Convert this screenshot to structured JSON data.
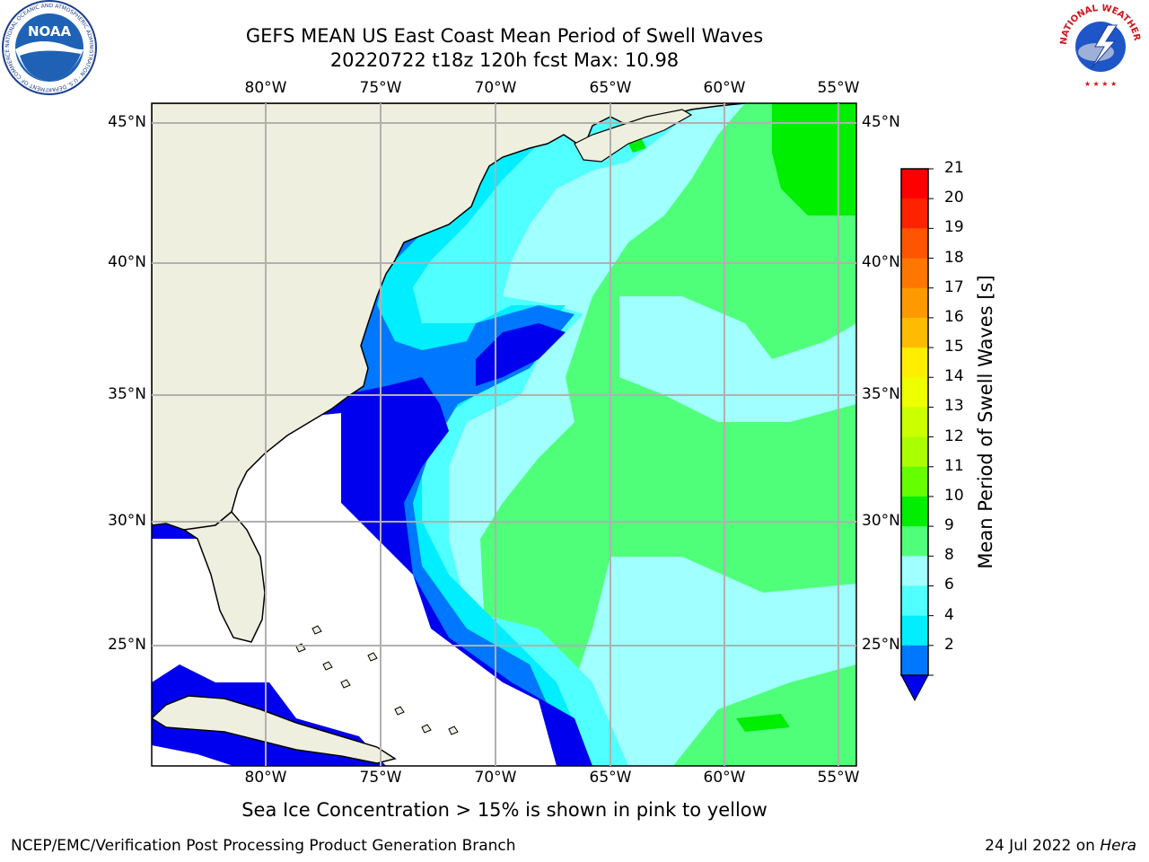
{
  "title": {
    "line1": "GEFS MEAN US East Coast Mean Period of Swell Waves",
    "line2": "20220722 t18z 120h fcst   Max: 10.98"
  },
  "map": {
    "lon_ticks_top": [
      "80°W",
      "75°W",
      "70°W",
      "65°W",
      "60°W",
      "55°W"
    ],
    "lon_ticks_bottom": [
      "80°W",
      "75°W",
      "70°W",
      "65°W",
      "60°W",
      "55°W"
    ],
    "lat_ticks_left": [
      "45°N",
      "40°N",
      "35°N",
      "30°N",
      "25°N"
    ],
    "lat_ticks_right": [
      "45°N",
      "40°N",
      "35°N",
      "30°N",
      "25°N"
    ],
    "colors": {
      "land": "#efefdf",
      "ocean_white": "#ffffff",
      "grid": "#b0b0b0",
      "coast": "#000000"
    }
  },
  "colorbar": {
    "title": "Mean Period of Swell Waves [s]",
    "labels": [
      "21",
      "20",
      "19",
      "18",
      "17",
      "16",
      "15",
      "14",
      "13",
      "12",
      "11",
      "10",
      "9",
      "8",
      "6",
      "4",
      "2"
    ],
    "colors": [
      "#ff0000",
      "#ff2200",
      "#ff5500",
      "#ff7700",
      "#ff9900",
      "#ffbb00",
      "#ffee00",
      "#eeff00",
      "#ccff00",
      "#aaff00",
      "#66ff00",
      "#00ee00",
      "#4fff7a",
      "#a0ffff",
      "#50ffff",
      "#00eeff",
      "#0077ff"
    ],
    "extend_color": "#0000ee"
  },
  "note": "Sea Ice Concentration > 15% is shown in pink to yellow",
  "footer": {
    "left": "NCEP/EMC/Verification Post Processing Product Generation Branch",
    "right_date": "24 Jul 2022 on",
    "right_machine": "Hera"
  },
  "logos": {
    "noaa_text": "NOAA",
    "noaa_ring_text": "NATIONAL OCEANIC AND ATMOSPHERIC ADMINISTRATION · U.S. DEPARTMENT OF COMMERCE",
    "nws_ring_text": "NATIONAL WEATHER SERVICE"
  }
}
